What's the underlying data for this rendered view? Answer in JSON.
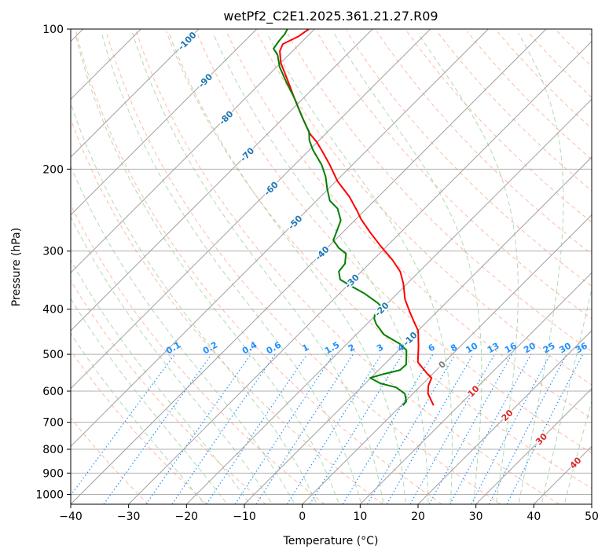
{
  "chart_data": {
    "type": "line",
    "subtype": "skew-t log-p",
    "title": "wetPf2_C2E1.2025.361.21.27.R09",
    "xlabel": "Temperature (°C)",
    "ylabel": "Pressure (hPa)",
    "xlim": [
      -40,
      50
    ],
    "ylim": [
      1050,
      100
    ],
    "x_ticks": [
      "−40",
      "−30",
      "−20",
      "−10",
      "0",
      "10",
      "20",
      "30",
      "40",
      "50"
    ],
    "x_tick_values": [
      -40,
      -30,
      -20,
      -10,
      0,
      10,
      20,
      30,
      40,
      50
    ],
    "y_ticks": [
      "100",
      "200",
      "300",
      "400",
      "500",
      "600",
      "700",
      "800",
      "900",
      "1000"
    ],
    "y_tick_values": [
      100,
      200,
      300,
      400,
      500,
      600,
      700,
      800,
      900,
      1000
    ],
    "grid": true,
    "series": [
      {
        "name": "temperature",
        "color": "#ff0000",
        "p": [
          100,
          103.6,
          107.7,
          111.5,
          118.2,
          127.8,
          140.9,
          155.3,
          167.9,
          174.6,
          182.9,
          196.2,
          212.1,
          229.3,
          246.0,
          255.8,
          273.3,
          292.1,
          313.2,
          332.0,
          352.1,
          380.6,
          403.5,
          427.7,
          444.6,
          480.8,
          519.7,
          551.0,
          561.9,
          584.2,
          607.4,
          643.9
        ],
        "t": [
          -81.0,
          -81.5,
          -82.9,
          -82.2,
          -80.0,
          -76.2,
          -71.5,
          -66.7,
          -62.7,
          -60.2,
          -57.6,
          -53.8,
          -49.8,
          -45.0,
          -41.2,
          -39.2,
          -35.3,
          -31.2,
          -26.7,
          -23.3,
          -20.7,
          -17.7,
          -14.9,
          -12.0,
          -10.0,
          -7.2,
          -4.6,
          -0.9,
          0.5,
          1.3,
          2.6,
          5.6
        ]
      },
      {
        "name": "dewpoint",
        "color": "#008000",
        "p": [
          100,
          102.4,
          106.0,
          110.2,
          113.7,
          120.6,
          130.3,
          140.9,
          155.3,
          166.7,
          173.3,
          181.5,
          196.2,
          208.0,
          220.5,
          233.8,
          243.1,
          257.8,
          278.6,
          284.1,
          295.4,
          303.5,
          319.3,
          332.0,
          345.3,
          356.2,
          370.4,
          388.1,
          400.5,
          411.5,
          419.6,
          431.1,
          453.5,
          475.2,
          490.2,
          525.9,
          540.5,
          551.0,
          561.9,
          577.4,
          588.8,
          607.4,
          631.4,
          643.9
        ],
        "t": [
          -84.7,
          -84.3,
          -84.1,
          -83.7,
          -81.9,
          -79.5,
          -75.6,
          -71.5,
          -66.7,
          -63.1,
          -61.7,
          -59.5,
          -55.2,
          -52.5,
          -50.2,
          -47.7,
          -45.0,
          -42.4,
          -40.7,
          -40.3,
          -38.0,
          -35.8,
          -34.2,
          -33.9,
          -32.3,
          -29.4,
          -25.6,
          -21.7,
          -19.5,
          -20.2,
          -19.6,
          -18.3,
          -15.2,
          -10.8,
          -8.6,
          -6.2,
          -6.3,
          -8.4,
          -10.1,
          -7.4,
          -4.0,
          -1.4,
          0.2,
          0.3
        ]
      }
    ],
    "isotherm_labels": [
      {
        "text": "-100",
        "t": -100,
        "p": 106
      },
      {
        "text": "-90",
        "t": -90,
        "p": 129
      },
      {
        "text": "-80",
        "t": -80,
        "p": 155
      },
      {
        "text": "-70",
        "t": -70,
        "p": 186
      },
      {
        "text": "-60",
        "t": -60,
        "p": 220
      },
      {
        "text": "-50",
        "t": -50,
        "p": 260
      },
      {
        "text": "-40",
        "t": -40,
        "p": 303
      },
      {
        "text": "-30",
        "t": -30,
        "p": 348
      },
      {
        "text": "-20",
        "t": -20,
        "p": 400
      },
      {
        "text": "-10",
        "t": -10,
        "p": 463
      },
      {
        "text": "0",
        "t": 0,
        "p": 526
      },
      {
        "text": "10",
        "t": 10,
        "p": 600
      },
      {
        "text": "20",
        "t": 20,
        "p": 676
      },
      {
        "text": "30",
        "t": 30,
        "p": 760
      },
      {
        "text": "40",
        "t": 40,
        "p": 855
      }
    ],
    "mixing_ratio_labels": [
      "0.1",
      "0.2",
      "0.4",
      "0.6",
      "1",
      "1.5",
      "2",
      "3",
      "4",
      "6",
      "8",
      "10",
      "13",
      "16",
      "20",
      "25",
      "30",
      "36"
    ],
    "mixing_ratio_values": [
      0.1,
      0.2,
      0.4,
      0.6,
      1,
      1.5,
      2,
      3,
      4,
      6,
      8,
      10,
      13,
      16,
      20,
      25,
      30,
      36
    ],
    "colors": {
      "isotherm": "#a0a0a0",
      "dry_adiabat": "#ff8c69",
      "moist_adiabat": "#7fbf7f",
      "mixing_ratio": "#1e90ff",
      "label_negative": "#1f77b4",
      "label_zero": "#808080",
      "label_positive": "#d62728"
    }
  }
}
